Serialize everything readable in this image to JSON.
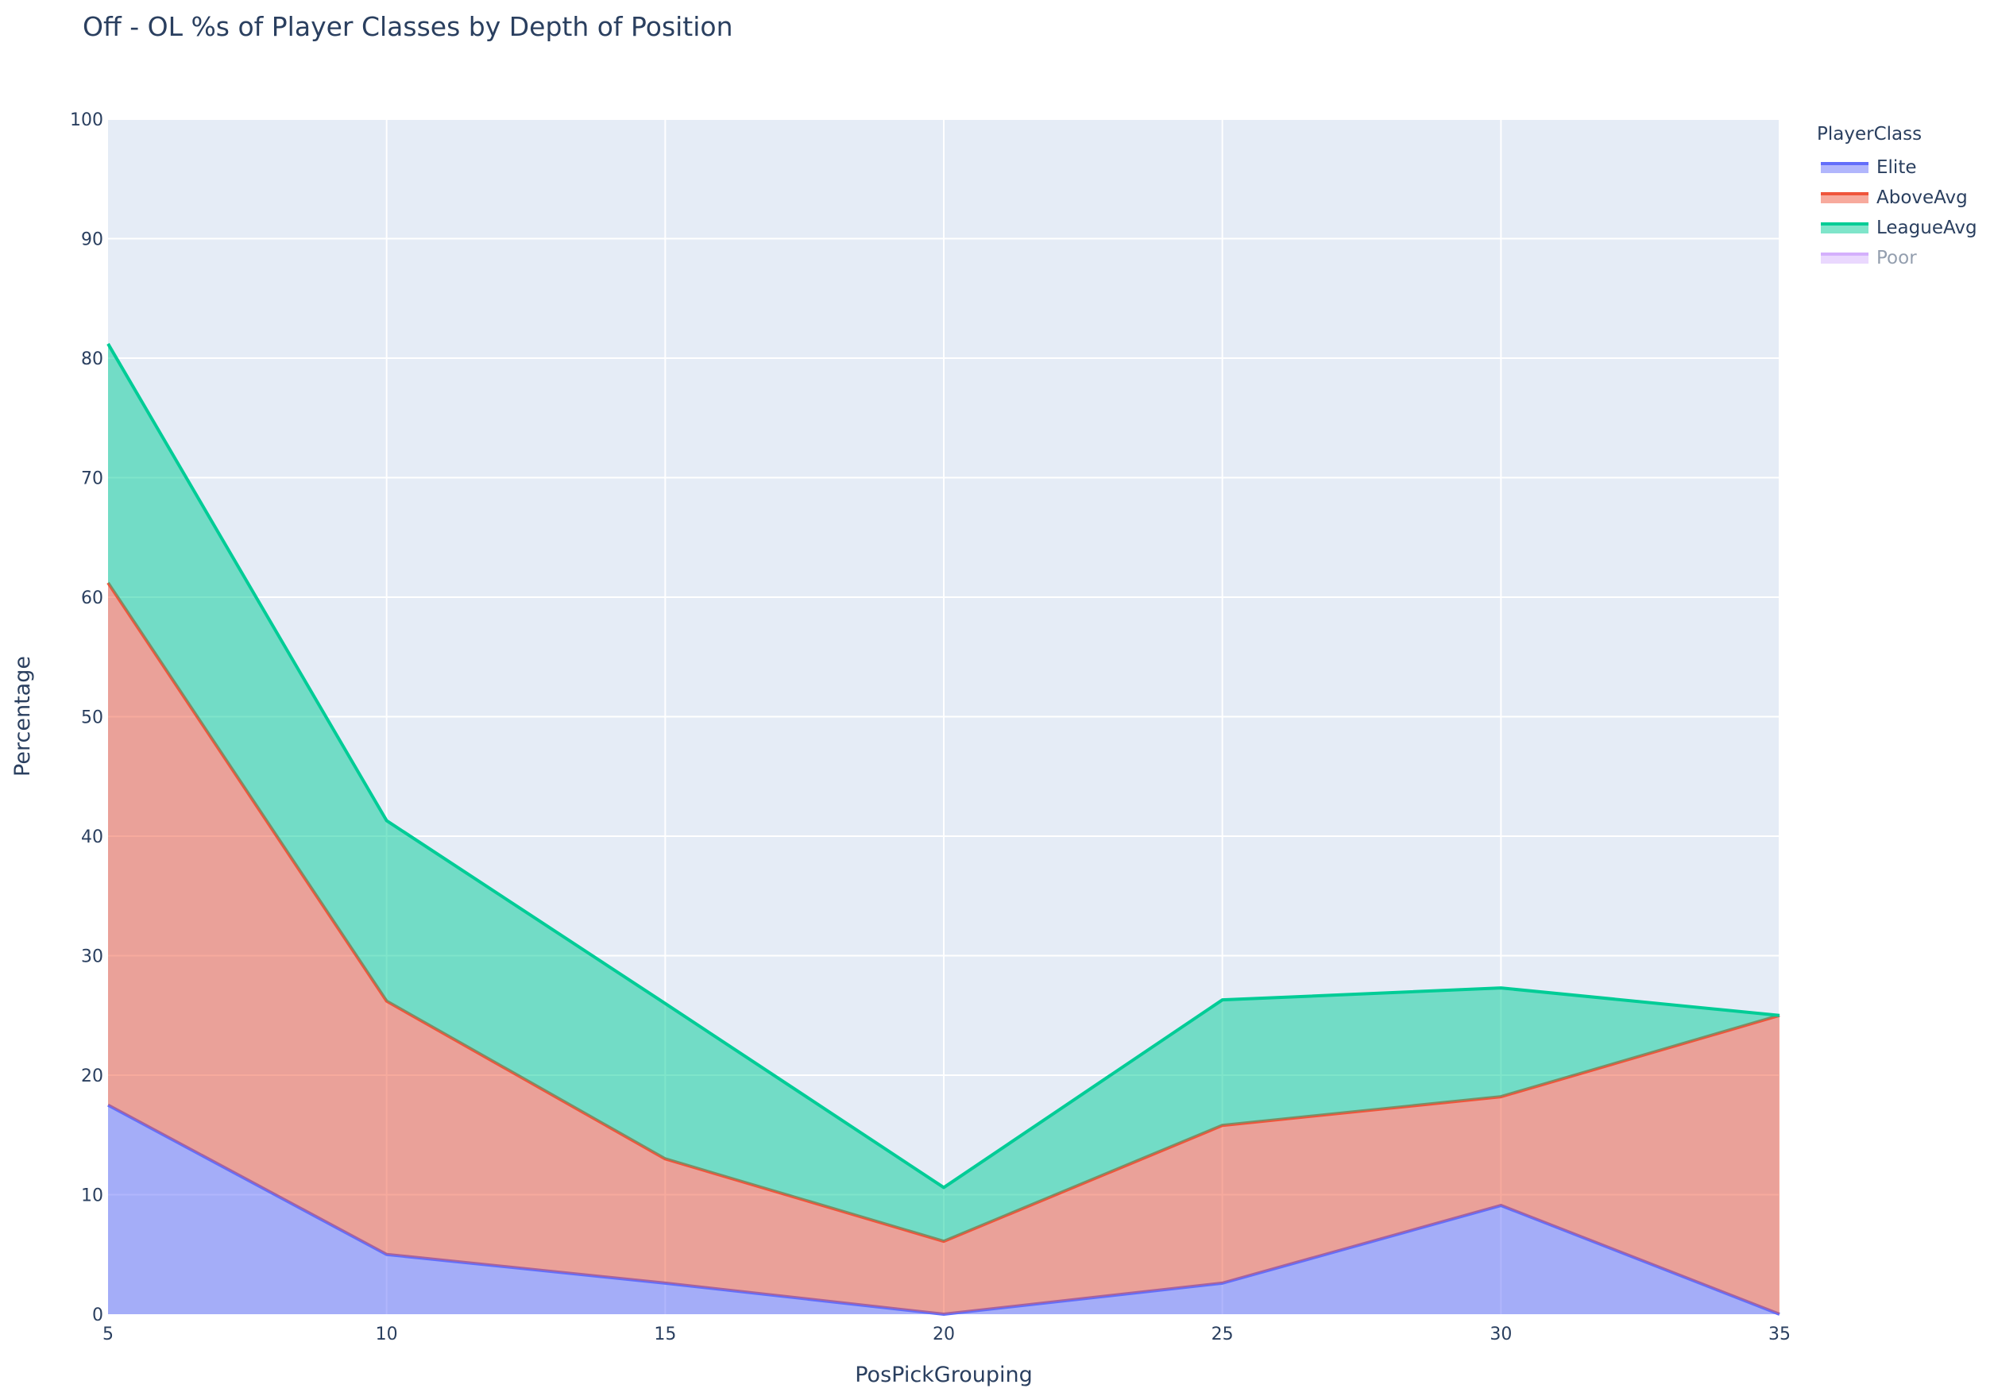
{
  "title": "Off - OL %s of Player Classes by Depth of Position",
  "legend": {
    "title": "PlayerClass",
    "items": [
      {
        "label": "Elite",
        "line": "#636efa",
        "fill": "rgba(99,110,250,0.5)",
        "visible": true
      },
      {
        "label": "AboveAvg",
        "line": "#ef553b",
        "fill": "rgba(239,85,59,0.5)",
        "visible": true
      },
      {
        "label": "LeagueAvg",
        "line": "#00cc96",
        "fill": "rgba(0,204,150,0.5)",
        "visible": true
      },
      {
        "label": "Poor",
        "line": "#ab63fa",
        "fill": "rgba(171,99,250,0.5)",
        "visible": false
      }
    ]
  },
  "axes": {
    "x_title": "PosPickGrouping",
    "y_title": "Percentage",
    "x_ticks": [
      "5",
      "10",
      "15",
      "20",
      "25",
      "30",
      "35"
    ],
    "y_ticks": [
      "0",
      "10",
      "20",
      "30",
      "40",
      "50",
      "60",
      "70",
      "80",
      "90",
      "100"
    ]
  },
  "colors": {
    "plot_bg": "#e5ecf6",
    "grid": "#ffffff",
    "text": "#2a3f5f"
  },
  "chart_data": {
    "type": "area",
    "stacked": true,
    "title": "Off - OL %s of Player Classes by Depth of Position",
    "xlabel": "PosPickGrouping",
    "ylabel": "Percentage",
    "x": [
      5,
      10,
      15,
      20,
      25,
      30,
      35
    ],
    "xlim": [
      5,
      35
    ],
    "ylim": [
      0,
      100
    ],
    "grid": true,
    "legend_position": "right",
    "legend_title": "PlayerClass",
    "series": [
      {
        "name": "Elite",
        "values": [
          17.5,
          5.0,
          2.6,
          0.0,
          2.6,
          9.1,
          0.0
        ]
      },
      {
        "name": "AboveAvg",
        "values": [
          43.7,
          21.2,
          10.4,
          6.1,
          13.2,
          9.1,
          25.0
        ]
      },
      {
        "name": "LeagueAvg",
        "values": [
          20.0,
          15.1,
          13.0,
          4.5,
          10.5,
          9.1,
          0.0
        ]
      },
      {
        "name": "Poor",
        "values": [],
        "hidden": true
      }
    ]
  }
}
